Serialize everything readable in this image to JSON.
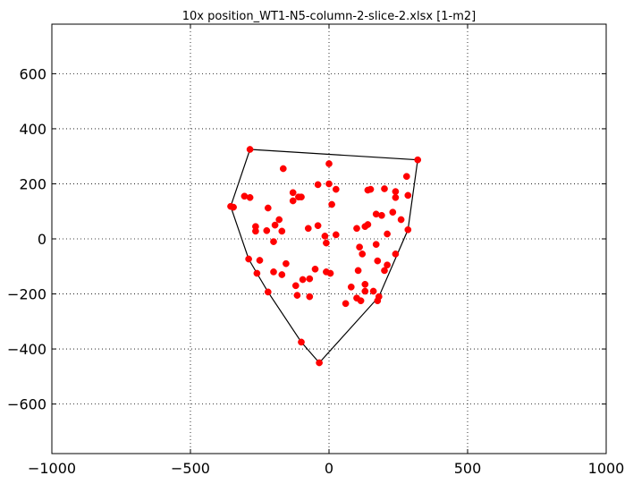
{
  "chart_data": {
    "type": "scatter",
    "title": "10x position_WT1-N5-column-2-slice-2.xlsx   [1-m2]",
    "xlabel": "",
    "ylabel": "",
    "xlim": [
      -1000,
      1000
    ],
    "ylim": [
      -780,
      780
    ],
    "xticks": [
      -1000,
      -500,
      0,
      500,
      1000
    ],
    "yticks": [
      -600,
      -400,
      -200,
      0,
      200,
      400,
      600
    ],
    "xtick_labels": [
      "−1000",
      "−500",
      "0",
      "500",
      "1000"
    ],
    "ytick_labels": [
      "−600",
      "−400",
      "−200",
      "0",
      "200",
      "400",
      "600"
    ],
    "grid": true,
    "point_color": "#ff0000",
    "hull_color": "#000000",
    "hull": [
      [
        -285,
        325
      ],
      [
        320,
        287
      ],
      [
        285,
        33
      ],
      [
        180,
        -210
      ],
      [
        -35,
        -450
      ],
      [
        -100,
        -375
      ],
      [
        -220,
        -193
      ],
      [
        -260,
        -125
      ],
      [
        -290,
        -73
      ],
      [
        -355,
        118
      ]
    ],
    "points": [
      [
        -285,
        325
      ],
      [
        320,
        287
      ],
      [
        -165,
        255
      ],
      [
        0,
        273
      ],
      [
        280,
        227
      ],
      [
        -40,
        197
      ],
      [
        0,
        200
      ],
      [
        25,
        180
      ],
      [
        150,
        180
      ],
      [
        140,
        177
      ],
      [
        200,
        182
      ],
      [
        -130,
        168
      ],
      [
        -305,
        155
      ],
      [
        -285,
        150
      ],
      [
        -110,
        152
      ],
      [
        -100,
        152
      ],
      [
        -130,
        138
      ],
      [
        240,
        172
      ],
      [
        240,
        150
      ],
      [
        285,
        158
      ],
      [
        10,
        125
      ],
      [
        -355,
        118
      ],
      [
        -345,
        115
      ],
      [
        -220,
        112
      ],
      [
        170,
        90
      ],
      [
        190,
        85
      ],
      [
        230,
        97
      ],
      [
        260,
        70
      ],
      [
        -180,
        70
      ],
      [
        -195,
        50
      ],
      [
        -265,
        45
      ],
      [
        -225,
        30
      ],
      [
        -265,
        28
      ],
      [
        -170,
        28
      ],
      [
        -40,
        48
      ],
      [
        -75,
        38
      ],
      [
        100,
        38
      ],
      [
        140,
        52
      ],
      [
        130,
        45
      ],
      [
        285,
        33
      ],
      [
        210,
        18
      ],
      [
        -15,
        10
      ],
      [
        25,
        15
      ],
      [
        -200,
        -10
      ],
      [
        -10,
        -15
      ],
      [
        170,
        -20
      ],
      [
        110,
        -30
      ],
      [
        120,
        -55
      ],
      [
        240,
        -55
      ],
      [
        210,
        -95
      ],
      [
        175,
        -80
      ],
      [
        -290,
        -73
      ],
      [
        -250,
        -78
      ],
      [
        -155,
        -90
      ],
      [
        -50,
        -110
      ],
      [
        -200,
        -120
      ],
      [
        -170,
        -130
      ],
      [
        -260,
        -125
      ],
      [
        -10,
        -120
      ],
      [
        5,
        -125
      ],
      [
        105,
        -115
      ],
      [
        200,
        -115
      ],
      [
        -120,
        -170
      ],
      [
        -95,
        -148
      ],
      [
        -70,
        -145
      ],
      [
        130,
        -165
      ],
      [
        80,
        -175
      ],
      [
        130,
        -190
      ],
      [
        160,
        -190
      ],
      [
        -220,
        -193
      ],
      [
        -115,
        -205
      ],
      [
        -70,
        -210
      ],
      [
        100,
        -215
      ],
      [
        115,
        -225
      ],
      [
        60,
        -235
      ],
      [
        175,
        -225
      ],
      [
        180,
        -210
      ],
      [
        -100,
        -375
      ],
      [
        -35,
        -450
      ]
    ]
  }
}
